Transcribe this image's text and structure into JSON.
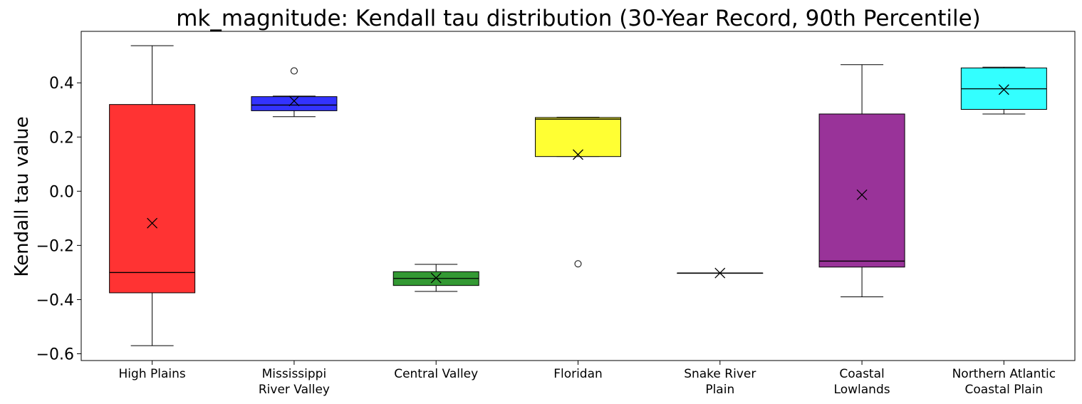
{
  "chart_data": {
    "type": "box",
    "title": "mk_magnitude: Kendall tau distribution (30-Year Record, 90th Percentile)",
    "xlabel": "",
    "ylabel": "Kendall tau value",
    "ylim": [
      -0.625,
      0.59
    ],
    "yticks": [
      -0.6,
      -0.4,
      -0.2,
      0.0,
      0.2,
      0.4
    ],
    "ytick_labels": [
      "−0.6",
      "−0.4",
      "−0.2",
      "0.0",
      "0.2",
      "0.4"
    ],
    "grid": false,
    "mean_marker": "x",
    "categories": [
      {
        "label": [
          "High Plains"
        ],
        "color": "#ff0000",
        "min": -0.57,
        "q1": -0.375,
        "median": -0.3,
        "q3": 0.32,
        "max": 0.537,
        "mean": -0.118,
        "outliers": []
      },
      {
        "label": [
          "Mississippi",
          "River Valley"
        ],
        "color": "#0000ff",
        "min": 0.275,
        "q1": 0.297,
        "median": 0.318,
        "q3": 0.349,
        "max": 0.351,
        "mean": 0.333,
        "outliers": [
          0.444
        ]
      },
      {
        "label": [
          "Central Valley"
        ],
        "color": "#008000",
        "min": -0.37,
        "q1": -0.348,
        "median": -0.322,
        "q3": -0.297,
        "max": -0.27,
        "mean": -0.32,
        "outliers": []
      },
      {
        "label": [
          "Floridan"
        ],
        "color": "#ffff00",
        "min": 0.128,
        "q1": 0.128,
        "median": 0.266,
        "q3": 0.272,
        "max": 0.273,
        "mean": 0.135,
        "outliers": [
          -0.268
        ]
      },
      {
        "label": [
          "Snake River",
          "Plain"
        ],
        "color": "#000000",
        "min": -0.302,
        "q1": -0.302,
        "median": -0.302,
        "q3": -0.302,
        "max": -0.302,
        "mean": -0.302,
        "outliers": []
      },
      {
        "label": [
          "Coastal",
          "Lowlands"
        ],
        "color": "#800080",
        "min": -0.39,
        "q1": -0.28,
        "median": -0.258,
        "q3": 0.285,
        "max": 0.467,
        "mean": -0.013,
        "outliers": []
      },
      {
        "label": [
          "Northern Atlantic",
          "Coastal Plain"
        ],
        "color": "#00ffff",
        "min": 0.285,
        "q1": 0.302,
        "median": 0.378,
        "q3": 0.455,
        "max": 0.458,
        "mean": 0.375,
        "outliers": []
      }
    ]
  }
}
